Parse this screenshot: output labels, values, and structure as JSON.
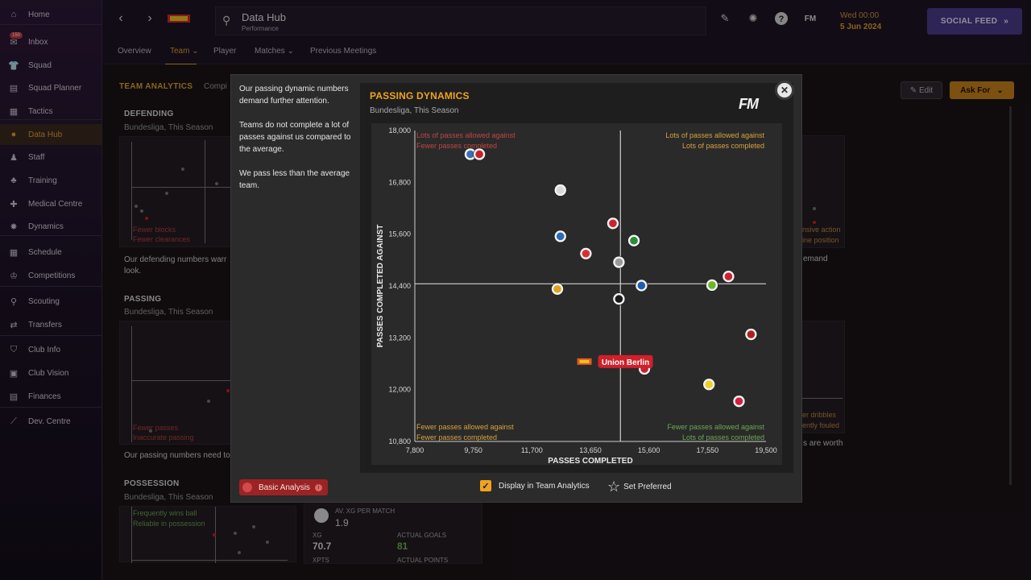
{
  "sidebar": {
    "items": [
      {
        "label": "Home",
        "icon": "home-icon"
      },
      {
        "label": "Inbox",
        "icon": "inbox-icon",
        "badge": "150"
      },
      {
        "label": "Squad",
        "icon": "shirt-icon"
      },
      {
        "label": "Squad Planner",
        "icon": "clipboard-icon"
      },
      {
        "label": "Tactics",
        "icon": "tactics-board-icon"
      },
      {
        "label": "Data Hub",
        "icon": "data-hub-icon",
        "active": true
      },
      {
        "label": "Staff",
        "icon": "staff-icon"
      },
      {
        "label": "Training",
        "icon": "training-icon"
      },
      {
        "label": "Medical Centre",
        "icon": "medical-cross-icon"
      },
      {
        "label": "Dynamics",
        "icon": "dynamics-icon"
      },
      {
        "label": "Schedule",
        "icon": "calendar-icon"
      },
      {
        "label": "Competitions",
        "icon": "trophy-icon"
      },
      {
        "label": "Scouting",
        "icon": "magnifier-icon"
      },
      {
        "label": "Transfers",
        "icon": "transfer-arrows-icon"
      },
      {
        "label": "Club Info",
        "icon": "shield-icon"
      },
      {
        "label": "Club Vision",
        "icon": "briefcase-icon"
      },
      {
        "label": "Finances",
        "icon": "finances-icon"
      },
      {
        "label": "Dev. Centre",
        "icon": "dev-centre-icon"
      }
    ]
  },
  "topbar": {
    "page_title": "Data Hub",
    "page_subtitle": "Performance",
    "date_time": "Wed 00:00",
    "date_day": "5 Jun 2024",
    "social_feed_label": "SOCIAL FEED",
    "fm_label": "FM"
  },
  "tabs": [
    {
      "label": "Overview"
    },
    {
      "label": "Team",
      "active": true
    },
    {
      "label": "Player"
    },
    {
      "label": "Matches"
    },
    {
      "label": "Previous Meetings"
    }
  ],
  "background": {
    "team_analytics": "TEAM ANALYTICS",
    "team_analytics_tail": "Compi",
    "defending_title": "DEFENDING",
    "defending_sub": "Bundesliga, This Season",
    "defending_text": "Our defending numbers warr",
    "defending_text2": "look.",
    "defending_q1": "Fewer blocks",
    "defending_q2": "Fewer clearances",
    "passing_title": "PASSING",
    "passing_sub": "Bundesliga, This Season",
    "passing_text": "Our passing numbers need to",
    "passing_q1": "Fewer passes",
    "passing_q2": "Inaccurate passing",
    "possession_title": "POSSESSION",
    "possession_sub": "Bundesliga, This Season",
    "possession_q1": "Frequently wins ball",
    "possession_q2": "Reliable in possession",
    "xg_label": "AV. XG PER MATCH",
    "xg_value": "1.9",
    "xg_short": "XG",
    "xg_total": "70.7",
    "actual_goals_label": "ACTUAL GOALS",
    "actual_goals": "81",
    "xpts_label": "XPTS",
    "actual_points_label": "ACTUAL POINTS",
    "right_text1": "emand",
    "right_text2": "s are worth",
    "right_q1": "nsive action",
    "right_q2": "ine position",
    "right_q3": "er dribbles",
    "right_q4": "ently fouled",
    "edit_label": "Edit",
    "ask_for_label": "Ask For"
  },
  "modal": {
    "insights": [
      "Our passing dynamic numbers demand further attention.",
      "Teams do not complete a lot of passes against us compared to the average.",
      "We pass less than the average team."
    ],
    "basic_analysis_label": "Basic Analysis",
    "display_label": "Display in Team Analytics",
    "set_preferred_label": "Set Preferred",
    "fm_logo": "FM"
  },
  "chart_data": {
    "type": "scatter",
    "title": "PASSING DYNAMICS",
    "subtitle": "Bundesliga, This Season",
    "xlabel": "PASSES COMPLETED",
    "ylabel": "PASSES COMPLETED AGAINST",
    "xlim": [
      7800,
      19500
    ],
    "ylim": [
      10800,
      18000
    ],
    "x_ticks": [
      7800,
      9750,
      11700,
      13650,
      15600,
      17550,
      19500
    ],
    "x_tick_labels": [
      "7,800",
      "9,750",
      "11,700",
      "13,650",
      "15,600",
      "17,550",
      "19,500"
    ],
    "y_ticks": [
      10800,
      12000,
      13200,
      14400,
      15600,
      16800,
      18000
    ],
    "y_tick_labels": [
      "10,800",
      "12,000",
      "13,200",
      "14,400",
      "15,600",
      "16,800",
      "18,000"
    ],
    "avg_x": 14650,
    "avg_y": 14450,
    "quadrant_labels": {
      "top_left": [
        "Lots of passes allowed against",
        "Fewer passes completed"
      ],
      "top_right": [
        "Lots of passes allowed against",
        "Lots of passes completed"
      ],
      "bottom_left": [
        "Fewer passes allowed against",
        "Fewer passes completed"
      ],
      "bottom_right": [
        "Fewer passes allowed against",
        "Lots of passes completed"
      ]
    },
    "colors": {
      "top_left": "#c0473f",
      "top_right": "#d9a23a",
      "bottom_left": "#d9a23a",
      "bottom_right": "#6aa84f",
      "highlight": "#d0202a"
    },
    "highlight_label": "Union Berlin",
    "points": [
      {
        "x": 9650,
        "y": 17450,
        "color": "#3a6fb0"
      },
      {
        "x": 9950,
        "y": 17450,
        "color": "#c8202a"
      },
      {
        "x": 12650,
        "y": 16620,
        "color": "#d8d8d8"
      },
      {
        "x": 12650,
        "y": 15550,
        "color": "#2a6ab8"
      },
      {
        "x": 13500,
        "y": 15150,
        "color": "#d83030"
      },
      {
        "x": 14400,
        "y": 15850,
        "color": "#d02030"
      },
      {
        "x": 14600,
        "y": 14950,
        "color": "#9a9a9a"
      },
      {
        "x": 15100,
        "y": 15450,
        "color": "#2a8a3a"
      },
      {
        "x": 15350,
        "y": 14410,
        "color": "#1a5fb0"
      },
      {
        "x": 12550,
        "y": 14330,
        "color": "#e0a020"
      },
      {
        "x": 14600,
        "y": 14100,
        "color": "#1a1a1a"
      },
      {
        "x": 17700,
        "y": 14420,
        "color": "#6ab82a"
      },
      {
        "x": 18250,
        "y": 14620,
        "color": "#d02030"
      },
      {
        "x": 19000,
        "y": 13280,
        "color": "#b02020"
      },
      {
        "x": 15450,
        "y": 12480,
        "color": "#c82030"
      },
      {
        "x": 13450,
        "y": 12650,
        "color": "#e05a20",
        "highlight": true
      },
      {
        "x": 17600,
        "y": 12120,
        "color": "#f0d020"
      },
      {
        "x": 18600,
        "y": 11730,
        "color": "#d02040"
      }
    ]
  }
}
